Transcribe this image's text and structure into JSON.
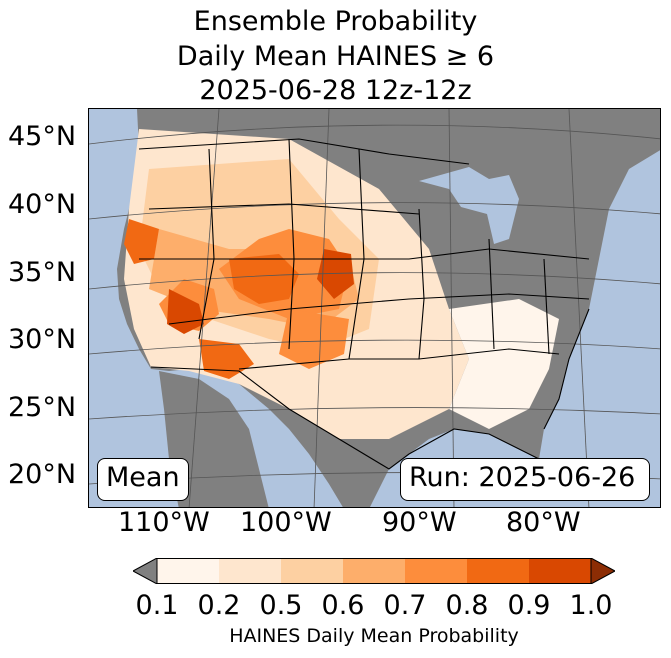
{
  "title": {
    "line1": "Ensemble Probability",
    "line2": "Daily Mean HAINES ≥ 6",
    "line3": "2025-06-28 12z-12z"
  },
  "map": {
    "latitude_labels": [
      "45°N",
      "40°N",
      "35°N",
      "30°N",
      "25°N",
      "20°N"
    ],
    "longitude_labels": [
      "110°W",
      "100°W",
      "90°W",
      "80°W"
    ],
    "mean_label": "Mean",
    "run_label": "Run: 2025-06-26",
    "colors": {
      "ocean": "#b0c4de",
      "land_no_data": "#808080",
      "state_lines": "#000000",
      "graticule": "#555555"
    }
  },
  "colorbar": {
    "label": "HAINES Daily Mean Probability",
    "ticks": [
      "0.1",
      "0.2",
      "0.5",
      "0.6",
      "0.7",
      "0.8",
      "0.9",
      "1.0"
    ],
    "colors": [
      "#fff5eb",
      "#fee6ce",
      "#fdd0a2",
      "#fdae6b",
      "#fd8d3c",
      "#f16913",
      "#d94801"
    ],
    "under_color": "#808080",
    "over_color": "#8c2d04"
  }
}
